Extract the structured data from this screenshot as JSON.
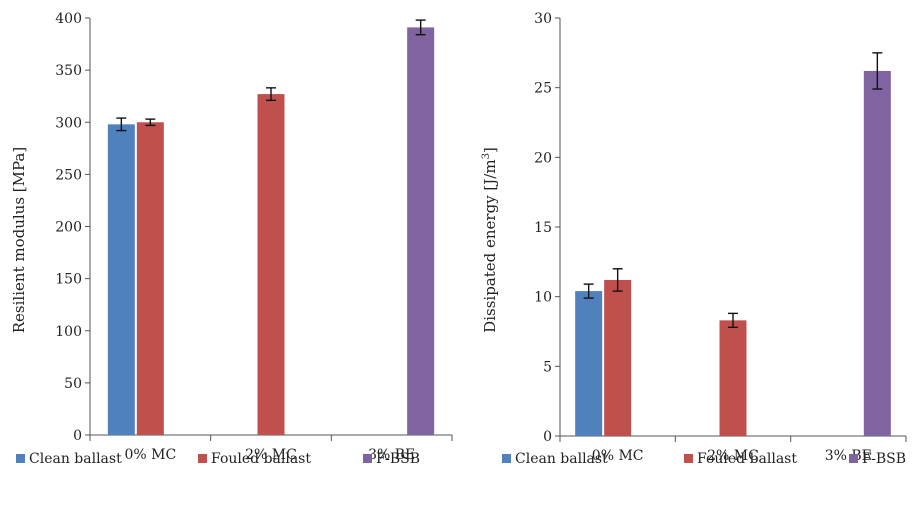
{
  "chart_data": [
    {
      "type": "bar",
      "categories": [
        "0% MC",
        "2% MC",
        "3% BE"
      ],
      "ylabel": "Resilient modulus [MPa]",
      "ylim": [
        0,
        400
      ],
      "yticks": [
        0,
        50,
        100,
        150,
        200,
        250,
        300,
        350,
        400
      ],
      "grid": false,
      "legend_position": "bottom",
      "series": [
        {
          "name": "Clean ballast",
          "color": "#4F81BD",
          "values": [
            298,
            null,
            null
          ],
          "errors": [
            6,
            null,
            null
          ]
        },
        {
          "name": "Fouled ballast",
          "color": "#C0504D",
          "values": [
            300,
            327,
            null
          ],
          "errors": [
            3,
            6,
            null
          ]
        },
        {
          "name": "F-BSB",
          "color": "#8064A2",
          "values": [
            null,
            null,
            391
          ],
          "errors": [
            null,
            null,
            7
          ]
        }
      ]
    },
    {
      "type": "bar",
      "categories": [
        "0% MC",
        "2% MC",
        "3% BE"
      ],
      "ylabel": "Dissipated energy [J/m",
      "ylabel_sup": "3",
      "ylabel_end": "]",
      "ylim": [
        0,
        30
      ],
      "yticks": [
        0,
        5,
        10,
        15,
        20,
        25,
        30
      ],
      "grid": false,
      "legend_position": "bottom",
      "series": [
        {
          "name": "Clean ballast",
          "color": "#4F81BD",
          "values": [
            10.4,
            null,
            null
          ],
          "errors": [
            0.5,
            null,
            null
          ]
        },
        {
          "name": "Fouled ballast",
          "color": "#C0504D",
          "values": [
            11.2,
            8.3,
            null
          ],
          "errors": [
            0.8,
            0.5,
            null
          ]
        },
        {
          "name": "F-BSB",
          "color": "#8064A2",
          "values": [
            null,
            null,
            26.2
          ],
          "errors": [
            null,
            null,
            1.3
          ]
        }
      ]
    }
  ]
}
